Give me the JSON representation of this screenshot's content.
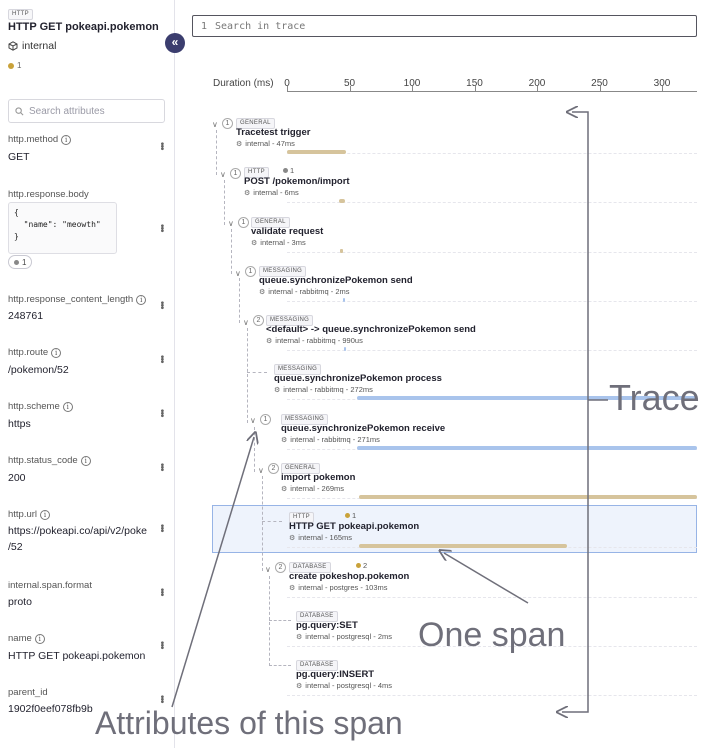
{
  "span": {
    "badge": "HTTP",
    "title": "HTTP GET pokeapi.pokemon",
    "service": "internal",
    "count": "1"
  },
  "left": {
    "search_placeholder": "Search attributes",
    "collapse_icon": "chevron-double-left-icon",
    "attributes": [
      {
        "key": "http.method",
        "value": "GET"
      },
      {
        "key": "http.response.body",
        "value": "{\n  \"name\": \"meowth\"\n}",
        "chip": "1"
      },
      {
        "key": "http.response_content_length",
        "value": "248761"
      },
      {
        "key": "http.route",
        "value": "/pokemon/52"
      },
      {
        "key": "http.scheme",
        "value": "https"
      },
      {
        "key": "http.status_code",
        "value": "200"
      },
      {
        "key": "http.url",
        "value": "https://pokeapi.co/api/v2/poke",
        "value2": "/52"
      },
      {
        "key": "internal.span.format",
        "value": "proto"
      },
      {
        "key": "name",
        "value": "HTTP GET pokeapi.pokemon"
      },
      {
        "key": "parent_id",
        "value": "1902f0eef078fb9b"
      }
    ]
  },
  "trace": {
    "search_line": "1",
    "search_placeholder": "Search in trace",
    "axis_label": "Duration (ms)",
    "ticks": [
      "0",
      "50",
      "100",
      "150",
      "200",
      "250",
      "300"
    ],
    "spans": [
      {
        "badge": "GENERAL",
        "name": "Tracetest trigger",
        "meta": "internal - 47ms",
        "children": "1"
      },
      {
        "badge": "HTTP",
        "name": "POST /pokemon/import",
        "meta": "internal - 6ms",
        "children": "1",
        "checks": "1"
      },
      {
        "badge": "GENERAL",
        "name": "validate request",
        "meta": "internal - 3ms",
        "children": "1"
      },
      {
        "badge": "MESSAGING",
        "name": "queue.synchronizePokemon send",
        "meta": "internal - rabbitmq - 2ms",
        "children": "1"
      },
      {
        "badge": "MESSAGING",
        "name": "<default> -> queue.synchronizePokemon send",
        "meta": "internal - rabbitmq - 990us",
        "children": "2"
      },
      {
        "badge": "MESSAGING",
        "name": "queue.synchronizePokemon process",
        "meta": "internal - rabbitmq - 272ms"
      },
      {
        "badge": "MESSAGING",
        "name": "queue.synchronizePokemon receive",
        "meta": "internal - rabbitmq - 271ms",
        "children": "1"
      },
      {
        "badge": "GENERAL",
        "name": "import pokemon",
        "meta": "internal - 269ms",
        "children": "2"
      },
      {
        "badge": "HTTP",
        "name": "HTTP GET pokeapi.pokemon",
        "meta": "internal - 165ms",
        "checks": "1"
      },
      {
        "badge": "DATABASE",
        "name": "create pokeshop.pokemon",
        "meta": "internal - postgres - 103ms",
        "children": "2",
        "checks": "2"
      },
      {
        "badge": "DATABASE",
        "name": "pg.query:SET",
        "meta": "internal - postgresql - 2ms"
      },
      {
        "badge": "DATABASE",
        "name": "pg.query:INSERT",
        "meta": "internal - postgresql - 4ms"
      }
    ]
  },
  "annotations": {
    "trace": "Trace",
    "one_span": "One span",
    "attributes": "Attributes of this span"
  },
  "colors": {
    "general_bar": "#d6c49c",
    "messaging_bar": "#a9c4ec",
    "selected_bg": "#eef3fc",
    "selected_border": "#97b4e6",
    "collapse_button": "#3b3d6e"
  }
}
